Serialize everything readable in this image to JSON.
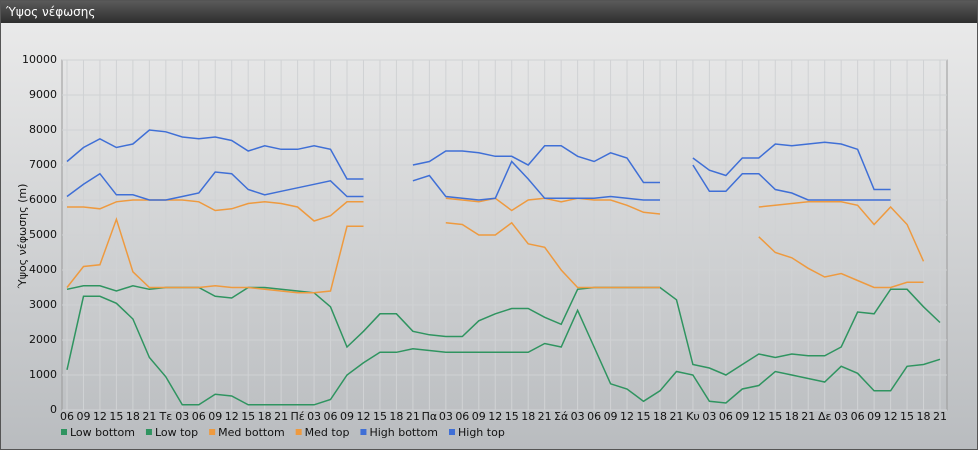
{
  "window_title": "Ύψος νέφωσης",
  "chart_data": {
    "type": "line",
    "y_label": "Ύψος νέφωσης (m)",
    "categories": [
      "06",
      "09",
      "12",
      "15",
      "18",
      "21",
      "Τε",
      "03",
      "06",
      "09",
      "12",
      "15",
      "18",
      "21",
      "Πέ",
      "03",
      "06",
      "09",
      "12",
      "15",
      "18",
      "21",
      "Πα",
      "03",
      "06",
      "09",
      "12",
      "15",
      "18",
      "21",
      "Σά",
      "03",
      "06",
      "09",
      "12",
      "15",
      "18",
      "21",
      "Κυ",
      "03",
      "06",
      "09",
      "12",
      "15",
      "18",
      "21",
      "Δε",
      "03",
      "06",
      "09",
      "12",
      "15",
      "18",
      "21"
    ],
    "ylim": [
      0,
      10000
    ],
    "yticks": [
      0,
      1000,
      2000,
      3000,
      4000,
      5000,
      6000,
      7000,
      8000,
      9000,
      10000
    ],
    "grid": true,
    "legend": "bottom",
    "series": [
      {
        "name": "Low bottom",
        "color": "#2f9460",
        "values": [
          1150,
          3250,
          3250,
          3050,
          2600,
          1500,
          950,
          150,
          150,
          450,
          400,
          150,
          150,
          150,
          150,
          150,
          300,
          1000,
          1350,
          1650,
          1650,
          1750,
          1700,
          1650,
          1650,
          1650,
          1650,
          1650,
          1650,
          1900,
          1800,
          2850,
          1800,
          750,
          600,
          250,
          550,
          1100,
          1000,
          250,
          200,
          600,
          700,
          1100,
          1000,
          900,
          800,
          1250,
          1050,
          550,
          550,
          1250,
          1300,
          1450
        ]
      },
      {
        "name": "Low top",
        "color": "#2f9460",
        "values": [
          3450,
          3550,
          3550,
          3400,
          3550,
          3450,
          3500,
          3500,
          3500,
          3250,
          3200,
          3500,
          3500,
          3450,
          3400,
          3350,
          2950,
          1800,
          2250,
          2750,
          2750,
          2250,
          2150,
          2100,
          2100,
          2550,
          2750,
          2900,
          2900,
          2650,
          2450,
          3450,
          3500,
          3500,
          3500,
          3500,
          3500,
          3150,
          1300,
          1200,
          1000,
          1300,
          1600,
          1500,
          1600,
          1550,
          1550,
          1800,
          2800,
          2750,
          3450,
          3450,
          2950,
          2500
        ]
      },
      {
        "name": "Med bottom",
        "color": "#ee9a3f",
        "values": [
          3500,
          4100,
          4150,
          5450,
          3950,
          3500,
          3500,
          3500,
          3500,
          3550,
          3500,
          3500,
          3450,
          3400,
          3350,
          3350,
          3400,
          5250,
          5250,
          null,
          null,
          null,
          null,
          5350,
          5300,
          5000,
          5000,
          5350,
          4750,
          4650,
          4000,
          3500,
          3500,
          3500,
          3500,
          3500,
          3500,
          null,
          null,
          null,
          null,
          null,
          4950,
          4500,
          4350,
          4050,
          3800,
          3900,
          3700,
          3500,
          3500,
          3650,
          3650,
          null
        ]
      },
      {
        "name": "Med top",
        "color": "#ee9a3f",
        "values": [
          5800,
          5800,
          5750,
          5950,
          6000,
          6000,
          6000,
          6000,
          5950,
          5700,
          5750,
          5900,
          5950,
          5900,
          5800,
          5400,
          5550,
          5950,
          5950,
          null,
          null,
          null,
          null,
          6050,
          6000,
          5950,
          6050,
          5700,
          6000,
          6050,
          5950,
          6050,
          6000,
          6000,
          5850,
          5650,
          5600,
          null,
          null,
          null,
          null,
          null,
          5800,
          5850,
          5900,
          5950,
          5950,
          5950,
          5850,
          5300,
          5800,
          5300,
          4250,
          null
        ]
      },
      {
        "name": "High bottom",
        "color": "#3f6fd6",
        "values": [
          6100,
          6450,
          6750,
          6150,
          6150,
          6000,
          6000,
          6100,
          6200,
          6800,
          6750,
          6300,
          6150,
          6250,
          6350,
          6450,
          6550,
          6100,
          6100,
          null,
          null,
          6550,
          6700,
          6100,
          6050,
          6000,
          6050,
          7100,
          6600,
          6050,
          6050,
          6050,
          6050,
          6100,
          6050,
          6000,
          6000,
          null,
          7000,
          6250,
          6250,
          6750,
          6750,
          6300,
          6200,
          6000,
          6000,
          6000,
          6000,
          6000,
          6000,
          null,
          null,
          null
        ]
      },
      {
        "name": "High top",
        "color": "#3f6fd6",
        "values": [
          7100,
          7500,
          7750,
          7500,
          7600,
          8000,
          7950,
          7800,
          7750,
          7800,
          7700,
          7400,
          7550,
          7450,
          7450,
          7550,
          7450,
          6600,
          6600,
          null,
          null,
          7000,
          7100,
          7400,
          7400,
          7350,
          7250,
          7250,
          7000,
          7550,
          7550,
          7250,
          7100,
          7350,
          7200,
          6500,
          6500,
          null,
          7200,
          6850,
          6700,
          7200,
          7200,
          7600,
          7550,
          7600,
          7650,
          7600,
          7450,
          6300,
          6300,
          null,
          null,
          null
        ]
      }
    ]
  }
}
